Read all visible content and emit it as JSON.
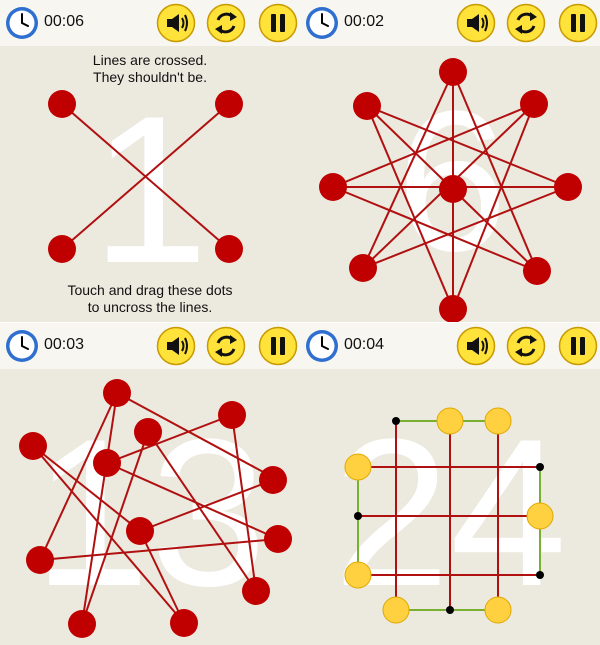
{
  "panels": [
    {
      "id": "level-1",
      "timer": "00:06",
      "level_number": "1",
      "hint_top_line1": "Lines are crossed.",
      "hint_top_line2": "They shouldn't be.",
      "hint_bottom_line1": "Touch and drag these dots",
      "hint_bottom_line2": "to uncross the lines."
    },
    {
      "id": "level-6",
      "timer": "00:02",
      "level_number": "6"
    },
    {
      "id": "level-13",
      "timer": "00:03",
      "level_number": "13"
    },
    {
      "id": "level-24",
      "timer": "00:04",
      "level_number": "24"
    }
  ],
  "buttons": {
    "sound_icon": "speaker-icon",
    "restart_icon": "refresh-icon",
    "pause_icon": "pause-icon"
  },
  "colors": {
    "background": "#ece9df",
    "topbar": "#f7f6f1",
    "dot_red": "#c00000",
    "line_red": "#b01010",
    "dot_yellow": "#ffd040",
    "line_green": "#7ab030",
    "button_yellow": "#ffe23a",
    "clock_blue": "#2f6fcf"
  }
}
